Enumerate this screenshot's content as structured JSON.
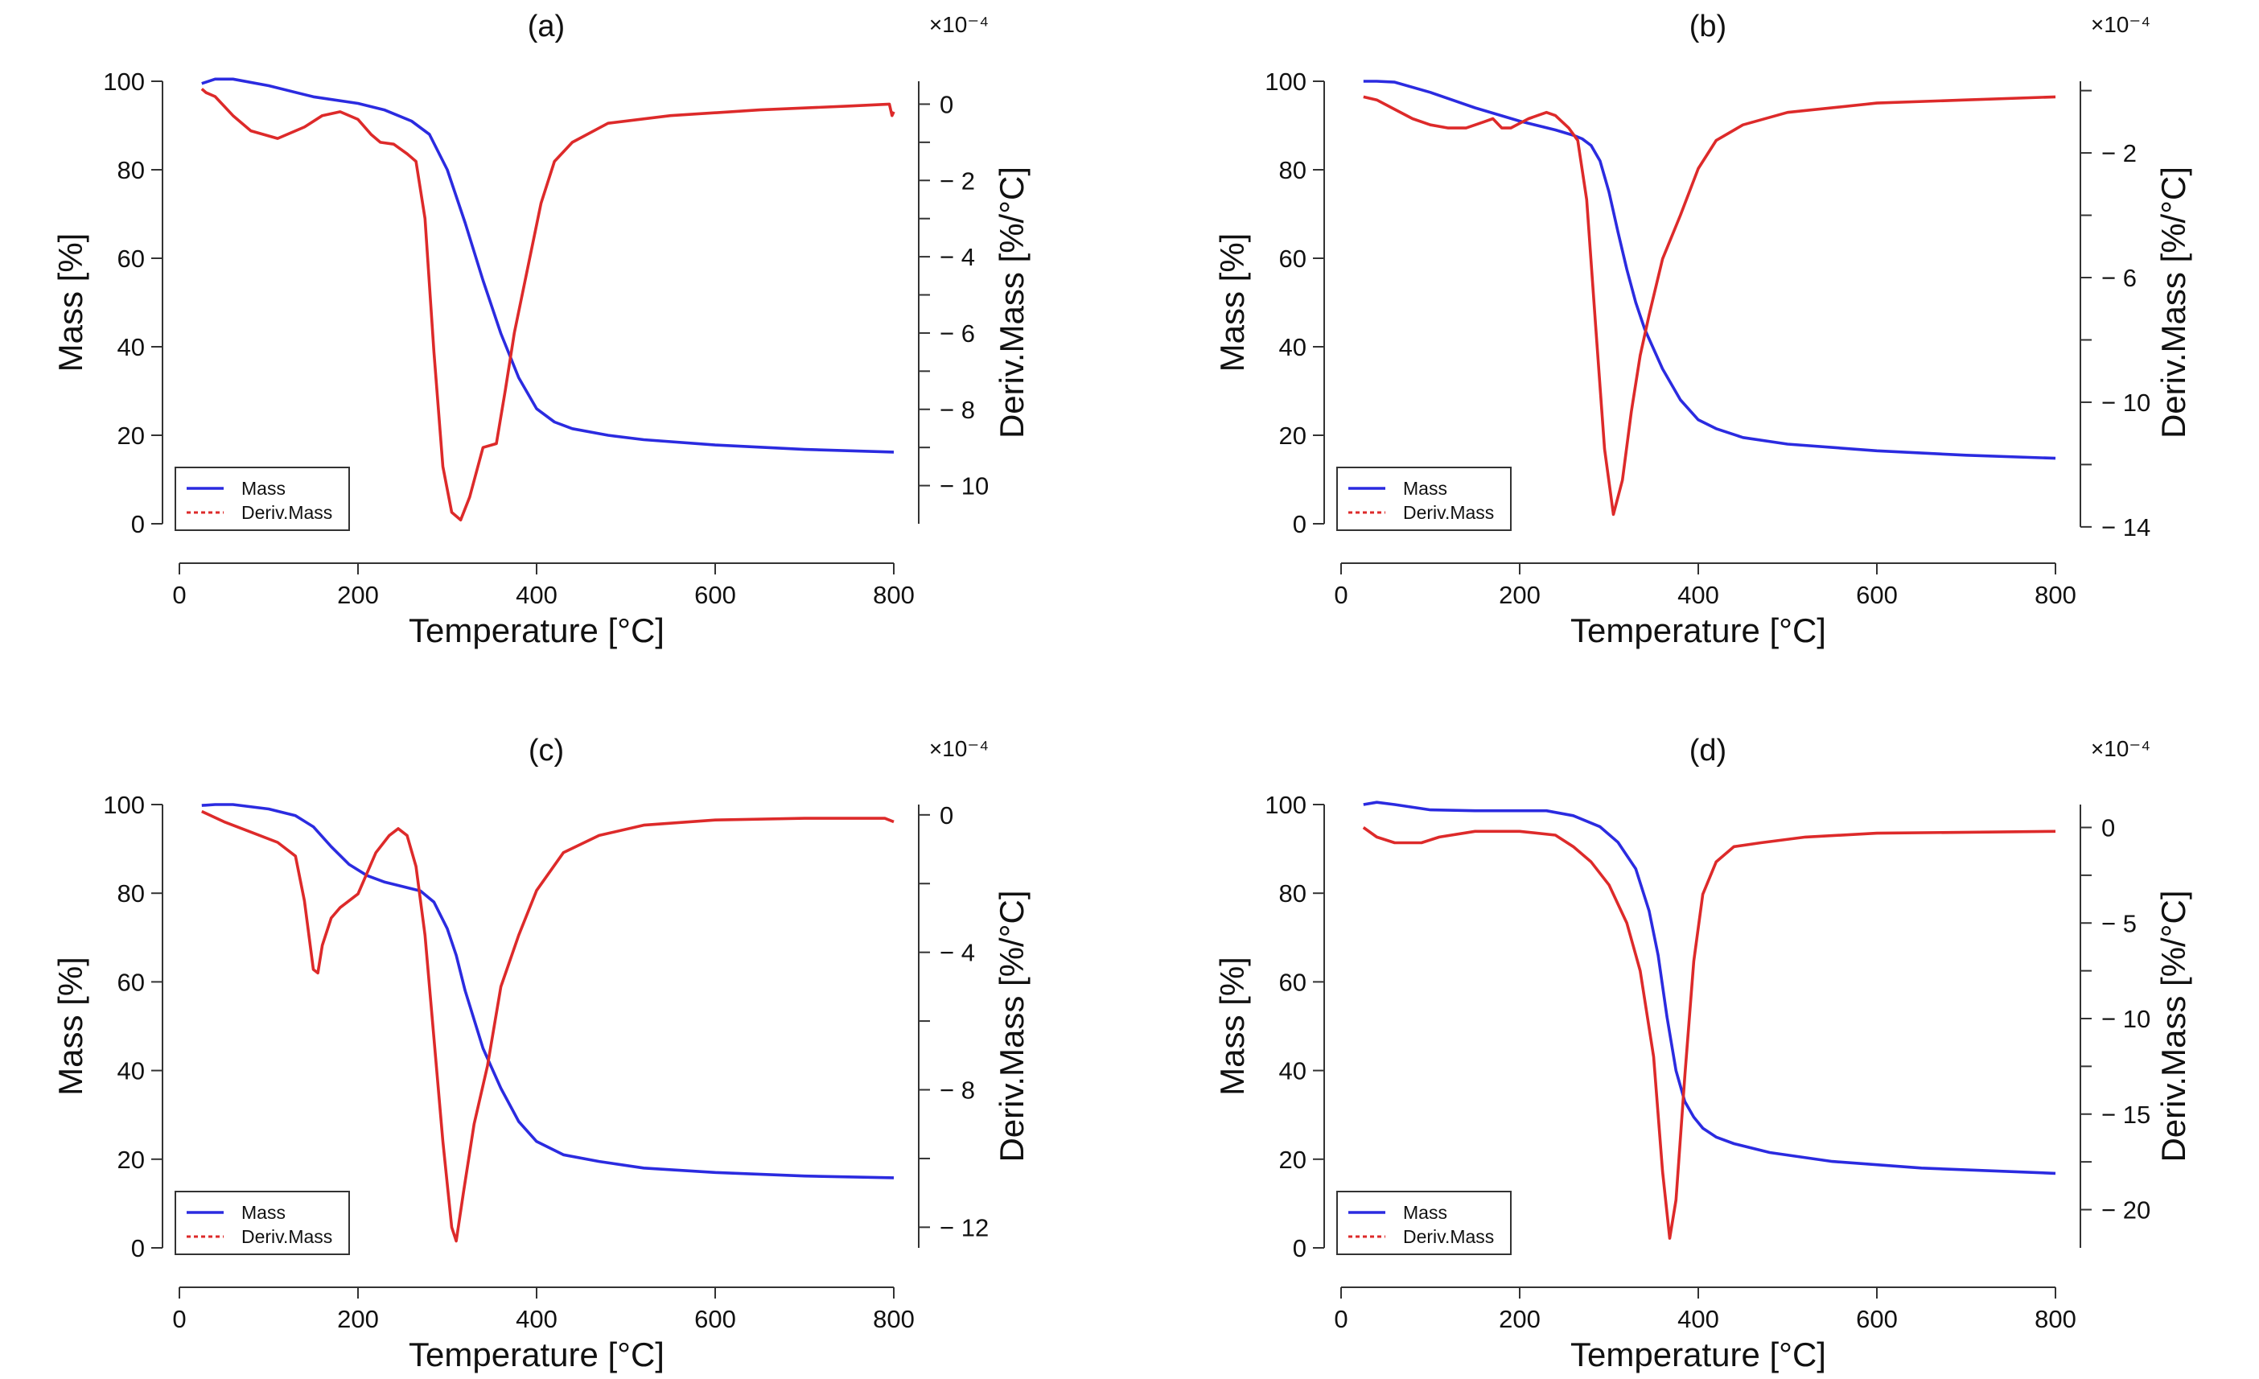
{
  "figure": {
    "description_labels": [
      "(a)",
      "(b)",
      "(c)",
      "(d)"
    ]
  },
  "colors": {
    "mass": "#2b2be0",
    "deriv": "#dd2a2a"
  },
  "chart_data": [
    {
      "type": "line",
      "title": "(a)",
      "xlabel": "Temperature [°C]",
      "ylabel": "Mass [%]",
      "y2label": "Deriv.Mass [%/°C]",
      "y2_multiplier": "×10⁻⁴",
      "xlim": [
        0,
        800
      ],
      "xticks": [
        "0",
        "200",
        "400",
        "600",
        "800"
      ],
      "ylim": [
        0,
        100
      ],
      "yticks": [
        "0",
        "20",
        "40",
        "60",
        "80",
        "100"
      ],
      "y2lim": [
        -11,
        0.6
      ],
      "y2ticks": [
        {
          "v": 0,
          "label": "0"
        },
        {
          "v": -2,
          "label": "− 2"
        },
        {
          "v": -4,
          "label": "− 4"
        },
        {
          "v": -6,
          "label": "− 6"
        },
        {
          "v": -8,
          "label": "− 8"
        },
        {
          "v": -10,
          "label": "− 10"
        }
      ],
      "y2minor": [
        -1,
        -3,
        -5,
        -7,
        -9
      ],
      "legend": [
        "Mass",
        "Deriv.Mass"
      ],
      "series": [
        {
          "name": "Mass",
          "axis": "left",
          "x": [
            25,
            40,
            60,
            100,
            150,
            200,
            230,
            260,
            280,
            300,
            320,
            340,
            360,
            380,
            400,
            420,
            440,
            480,
            520,
            600,
            700,
            800
          ],
          "values": [
            99.5,
            100.5,
            100.5,
            99,
            96.5,
            95,
            93.5,
            91,
            88,
            80,
            68,
            55,
            43,
            33,
            26,
            23,
            21.5,
            20,
            19,
            17.8,
            16.8,
            16.2
          ]
        },
        {
          "name": "Deriv.Mass",
          "axis": "right",
          "x": [
            25,
            30,
            40,
            60,
            80,
            110,
            140,
            160,
            180,
            200,
            215,
            225,
            240,
            255,
            265,
            275,
            285,
            295,
            305,
            315,
            325,
            340,
            355,
            365,
            375,
            390,
            405,
            420,
            440,
            480,
            550,
            650,
            750,
            795,
            798,
            800
          ],
          "values": [
            0.4,
            0.3,
            0.2,
            -0.3,
            -0.7,
            -0.9,
            -0.6,
            -0.3,
            -0.2,
            -0.4,
            -0.8,
            -1.0,
            -1.05,
            -1.3,
            -1.5,
            -3.0,
            -6.5,
            -9.5,
            -10.7,
            -10.9,
            -10.3,
            -9.0,
            -8.9,
            -7.5,
            -6.0,
            -4.3,
            -2.6,
            -1.5,
            -1.0,
            -0.5,
            -0.3,
            -0.15,
            -0.05,
            0.0,
            -0.3,
            -0.2
          ]
        }
      ]
    },
    {
      "type": "line",
      "title": "(b)",
      "xlabel": "Temperature [°C]",
      "ylabel": "Mass [%]",
      "y2label": "Deriv.Mass [%/°C]",
      "y2_multiplier": "×10⁻⁴",
      "xlim": [
        0,
        800
      ],
      "xticks": [
        "0",
        "200",
        "400",
        "600",
        "800"
      ],
      "ylim": [
        0,
        100
      ],
      "yticks": [
        "0",
        "20",
        "40",
        "60",
        "80",
        "100"
      ],
      "y2lim": [
        -13.9,
        0.3
      ],
      "y2ticks": [
        {
          "v": -2,
          "label": "− 2"
        },
        {
          "v": -6,
          "label": "− 6"
        },
        {
          "v": -10,
          "label": "− 10"
        },
        {
          "v": -14,
          "label": "− 14"
        }
      ],
      "y2minor": [
        0,
        -4,
        -8,
        -12
      ],
      "legend": [
        "Mass",
        "Deriv.Mass"
      ],
      "series": [
        {
          "name": "Mass",
          "axis": "left",
          "x": [
            25,
            40,
            60,
            100,
            150,
            200,
            240,
            260,
            270,
            280,
            290,
            300,
            310,
            320,
            330,
            340,
            360,
            380,
            400,
            420,
            450,
            500,
            600,
            700,
            800
          ],
          "values": [
            100,
            100,
            99.8,
            97.5,
            94,
            91,
            89,
            87.8,
            87,
            85.5,
            82,
            75,
            66,
            57.5,
            50,
            44,
            35,
            28,
            23.5,
            21.5,
            19.5,
            18,
            16.5,
            15.5,
            14.8
          ]
        },
        {
          "name": "Deriv.Mass",
          "axis": "right",
          "x": [
            25,
            40,
            60,
            80,
            100,
            120,
            140,
            160,
            170,
            180,
            190,
            200,
            210,
            220,
            230,
            240,
            255,
            265,
            275,
            285,
            295,
            305,
            315,
            325,
            335,
            345,
            360,
            380,
            400,
            420,
            450,
            500,
            600,
            700,
            800
          ],
          "values": [
            -0.2,
            -0.3,
            -0.6,
            -0.9,
            -1.1,
            -1.2,
            -1.2,
            -1.0,
            -0.9,
            -1.2,
            -1.2,
            -1.05,
            -0.9,
            -0.8,
            -0.7,
            -0.8,
            -1.2,
            -1.6,
            -3.5,
            -7.5,
            -11.5,
            -13.6,
            -12.5,
            -10.3,
            -8.5,
            -7.2,
            -5.4,
            -4.0,
            -2.5,
            -1.6,
            -1.1,
            -0.7,
            -0.4,
            -0.3,
            -0.2
          ]
        }
      ]
    },
    {
      "type": "line",
      "title": "(c)",
      "xlabel": "Temperature [°C]",
      "ylabel": "Mass [%]",
      "y2label": "Deriv.Mass [%/°C]",
      "y2_multiplier": "×10⁻⁴",
      "xlim": [
        0,
        800
      ],
      "xticks": [
        "0",
        "200",
        "400",
        "600",
        "800"
      ],
      "ylim": [
        0,
        100
      ],
      "yticks": [
        "0",
        "20",
        "40",
        "60",
        "80",
        "100"
      ],
      "y2lim": [
        -12.6,
        0.3
      ],
      "y2ticks": [
        {
          "v": 0,
          "label": "0"
        },
        {
          "v": -4,
          "label": "− 4"
        },
        {
          "v": -8,
          "label": "− 8"
        },
        {
          "v": -12,
          "label": "− 12"
        }
      ],
      "y2minor": [
        -2,
        -6,
        -10
      ],
      "legend": [
        "Mass",
        "Deriv.Mass"
      ],
      "series": [
        {
          "name": "Mass",
          "axis": "left",
          "x": [
            25,
            40,
            60,
            100,
            130,
            150,
            170,
            190,
            210,
            230,
            250,
            270,
            285,
            300,
            310,
            320,
            340,
            360,
            380,
            400,
            430,
            470,
            520,
            600,
            700,
            800
          ],
          "values": [
            99.8,
            100,
            100,
            99,
            97.5,
            95,
            90.5,
            86.5,
            84,
            82.5,
            81.5,
            80.5,
            78,
            72,
            66,
            58,
            45,
            36,
            28.5,
            24,
            21,
            19.5,
            18,
            17,
            16.2,
            15.8
          ]
        },
        {
          "name": "Deriv.Mass",
          "axis": "right",
          "x": [
            25,
            50,
            80,
            110,
            130,
            140,
            150,
            155,
            160,
            170,
            180,
            200,
            220,
            235,
            245,
            255,
            265,
            275,
            285,
            295,
            305,
            310,
            318,
            330,
            345,
            360,
            380,
            400,
            430,
            470,
            520,
            600,
            700,
            790,
            800
          ],
          "values": [
            0.1,
            -0.2,
            -0.5,
            -0.8,
            -1.2,
            -2.5,
            -4.5,
            -4.6,
            -3.8,
            -3.0,
            -2.7,
            -2.3,
            -1.1,
            -0.6,
            -0.4,
            -0.6,
            -1.5,
            -3.5,
            -6.5,
            -9.5,
            -12.0,
            -12.4,
            -11.0,
            -9.0,
            -7.3,
            -5.0,
            -3.5,
            -2.2,
            -1.1,
            -0.6,
            -0.3,
            -0.15,
            -0.1,
            -0.1,
            -0.2
          ]
        }
      ]
    },
    {
      "type": "line",
      "title": "(d)",
      "xlabel": "Temperature [°C]",
      "ylabel": "Mass [%]",
      "y2label": "Deriv.Mass [%/°C]",
      "y2_multiplier": "×10⁻⁴",
      "xlim": [
        0,
        800
      ],
      "xticks": [
        "0",
        "200",
        "400",
        "600",
        "800"
      ],
      "ylim": [
        0,
        100
      ],
      "yticks": [
        "0",
        "20",
        "40",
        "60",
        "80",
        "100"
      ],
      "y2lim": [
        -22,
        1.2
      ],
      "y2ticks": [
        {
          "v": 0,
          "label": "0"
        },
        {
          "v": -5,
          "label": "− 5"
        },
        {
          "v": -10,
          "label": "− 10"
        },
        {
          "v": -15,
          "label": "− 15"
        },
        {
          "v": -20,
          "label": "− 20"
        }
      ],
      "y2minor": [
        -2.5,
        -7.5,
        -12.5,
        -17.5
      ],
      "legend": [
        "Mass",
        "Deriv.Mass"
      ],
      "series": [
        {
          "name": "Mass",
          "axis": "left",
          "x": [
            25,
            40,
            60,
            100,
            150,
            200,
            230,
            260,
            290,
            310,
            330,
            345,
            355,
            365,
            375,
            385,
            395,
            405,
            420,
            440,
            480,
            550,
            650,
            800
          ],
          "values": [
            100,
            100.5,
            100,
            98.8,
            98.6,
            98.6,
            98.6,
            97.5,
            95,
            91.5,
            85.5,
            76,
            66,
            52,
            40,
            33,
            29.5,
            27,
            25,
            23.5,
            21.5,
            19.5,
            18,
            16.8
          ]
        },
        {
          "name": "Deriv.Mass",
          "axis": "right",
          "x": [
            25,
            40,
            60,
            90,
            110,
            150,
            200,
            240,
            260,
            280,
            300,
            320,
            335,
            350,
            360,
            368,
            375,
            385,
            395,
            405,
            420,
            440,
            470,
            520,
            600,
            800
          ],
          "values": [
            0,
            -0.5,
            -0.8,
            -0.8,
            -0.5,
            -0.2,
            -0.2,
            -0.4,
            -1.0,
            -1.8,
            -3.0,
            -5.0,
            -7.5,
            -12.0,
            -18.0,
            -21.5,
            -19.5,
            -13.0,
            -7.0,
            -3.5,
            -1.8,
            -1.0,
            -0.8,
            -0.5,
            -0.3,
            -0.2
          ]
        }
      ]
    }
  ]
}
